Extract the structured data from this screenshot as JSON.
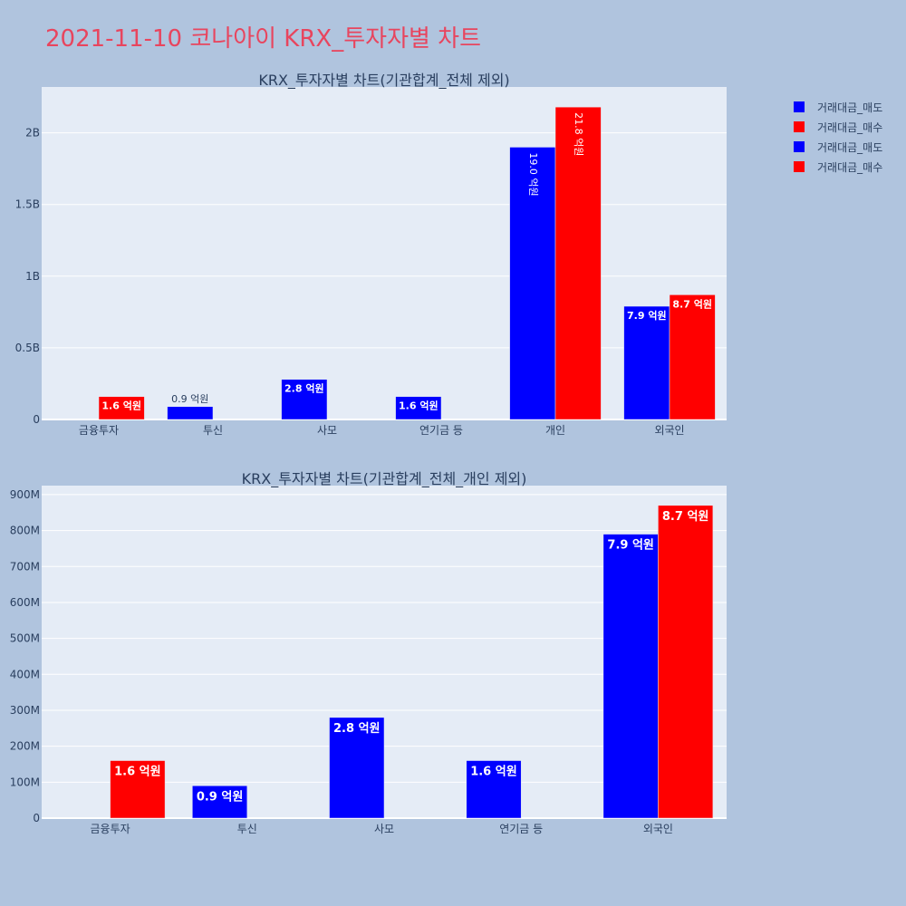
{
  "title": "2021-11-10 코나아이 KRX_투자자별 차트",
  "legend": [
    {
      "label": "거래대금_매도",
      "color": "#0000ff"
    },
    {
      "label": "거래대금_매수",
      "color": "#ff0000"
    },
    {
      "label": "거래대금_매도",
      "color": "#0000ff"
    },
    {
      "label": "거래대금_매수",
      "color": "#ff0000"
    }
  ],
  "chart_data": [
    {
      "type": "bar",
      "title": "KRX_투자자별 차트(기관합계_전체 제외)",
      "categories": [
        "금융투자",
        "투신",
        "사모",
        "연기금 등",
        "개인",
        "외국인"
      ],
      "series": [
        {
          "name": "거래대금_매도",
          "color": "#0000ff",
          "values": [
            0,
            90000000,
            280000000,
            160000000,
            1900000000,
            790000000
          ],
          "labels": [
            "",
            "0.9 억원",
            "2.8 억원",
            "1.6 억원",
            "19.0 억원",
            "7.9 억원"
          ]
        },
        {
          "name": "거래대금_매수",
          "color": "#ff0000",
          "values": [
            160000000,
            0,
            0,
            0,
            2180000000,
            870000000
          ],
          "labels": [
            "1.6 억원",
            "",
            "",
            "",
            "21.8 억원",
            "8.7 억원"
          ]
        }
      ],
      "ylim": [
        0,
        2320000000
      ],
      "yticks": [
        0,
        500000000,
        1000000000,
        1500000000,
        2000000000
      ],
      "ytick_labels": [
        "0",
        "0.5B",
        "1B",
        "1.5B",
        "2B"
      ],
      "grid": true
    },
    {
      "type": "bar",
      "title": "KRX_투자자별 차트(기관합계_전체_개인 제외)",
      "categories": [
        "금융투자",
        "투신",
        "사모",
        "연기금 등",
        "외국인"
      ],
      "series": [
        {
          "name": "거래대금_매도",
          "color": "#0000ff",
          "values": [
            0,
            90000000,
            280000000,
            160000000,
            790000000
          ],
          "labels": [
            "",
            "0.9 억원",
            "2.8 억원",
            "1.6 억원",
            "7.9 억원"
          ]
        },
        {
          "name": "거래대금_매수",
          "color": "#ff0000",
          "values": [
            160000000,
            0,
            0,
            0,
            870000000
          ],
          "labels": [
            "1.6 억원",
            "",
            "",
            "",
            "8.7 억원"
          ]
        }
      ],
      "ylim": [
        0,
        925000000
      ],
      "yticks": [
        0,
        100000000,
        200000000,
        300000000,
        400000000,
        500000000,
        600000000,
        700000000,
        800000000,
        900000000
      ],
      "ytick_labels": [
        "0",
        "100M",
        "200M",
        "300M",
        "400M",
        "500M",
        "600M",
        "700M",
        "800M",
        "900M"
      ],
      "grid": true
    }
  ]
}
